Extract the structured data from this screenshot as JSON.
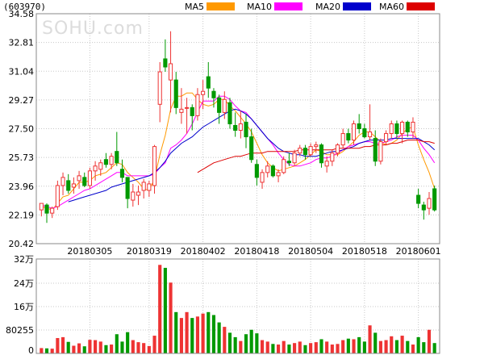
{
  "header": {
    "code": "(603970)"
  },
  "watermark": "SOHU.com",
  "legend": [
    {
      "name": "MA5",
      "color": "#ff9900"
    },
    {
      "name": "MA10",
      "color": "#ff00ff"
    },
    {
      "name": "MA20",
      "color": "#0000cc"
    },
    {
      "name": "MA60",
      "color": "#dd0000"
    }
  ],
  "colors": {
    "up": "#ee3333",
    "down": "#009900",
    "grid": "#c8c8c8",
    "axis": "#888888"
  },
  "chart_data": {
    "type": "candlestick",
    "price_axis": {
      "ticks": [
        "34.58",
        "32.81",
        "31.04",
        "29.27",
        "27.50",
        "25.73",
        "23.96",
        "22.19",
        "20.42"
      ],
      "ylim": [
        20.42,
        34.58
      ]
    },
    "volume_axis": {
      "ticks": [
        "32万",
        "24万",
        "16万",
        "80255",
        "0"
      ],
      "ylim": [
        0,
        320000
      ]
    },
    "x_ticks": [
      {
        "index": 9,
        "label": "20180305"
      },
      {
        "index": 20,
        "label": "20180319"
      },
      {
        "index": 30,
        "label": "20180402"
      },
      {
        "index": 40,
        "label": "20180418"
      },
      {
        "index": 50,
        "label": "20180504"
      },
      {
        "index": 60,
        "label": "20180518"
      },
      {
        "index": 70,
        "label": "20180601"
      }
    ],
    "candles": [
      [
        22.5,
        22.9,
        22.1,
        22.9
      ],
      [
        22.8,
        22.9,
        21.7,
        22.3
      ],
      [
        22.3,
        22.7,
        22.0,
        22.6
      ],
      [
        22.7,
        24.3,
        22.5,
        24.0
      ],
      [
        24.0,
        24.8,
        23.4,
        24.5
      ],
      [
        24.3,
        24.7,
        23.5,
        23.7
      ],
      [
        23.9,
        24.5,
        23.5,
        24.1
      ],
      [
        24.3,
        24.9,
        23.8,
        24.6
      ],
      [
        24.5,
        24.8,
        23.9,
        24.0
      ],
      [
        24.0,
        25.1,
        23.8,
        24.9
      ],
      [
        24.9,
        25.5,
        24.3,
        25.2
      ],
      [
        25.0,
        25.6,
        24.6,
        25.4
      ],
      [
        25.6,
        26.0,
        25.1,
        25.3
      ],
      [
        25.3,
        26.0,
        25.0,
        25.8
      ],
      [
        26.1,
        27.3,
        25.2,
        25.4
      ],
      [
        25.0,
        25.6,
        24.2,
        24.5
      ],
      [
        24.5,
        24.5,
        22.6,
        23.2
      ],
      [
        23.1,
        24.1,
        22.7,
        23.6
      ],
      [
        23.4,
        24.0,
        22.8,
        23.6
      ],
      [
        23.7,
        24.4,
        23.2,
        24.2
      ],
      [
        23.7,
        24.3,
        23.3,
        24.1
      ],
      [
        24.0,
        26.5,
        23.5,
        26.4
      ],
      [
        29.0,
        31.6,
        27.9,
        31.0
      ],
      [
        31.8,
        33.0,
        31.0,
        31.3
      ],
      [
        30.5,
        33.5,
        28.5,
        31.5
      ],
      [
        30.5,
        31.0,
        28.4,
        28.8
      ],
      [
        28.5,
        30.0,
        27.8,
        28.7
      ],
      [
        28.8,
        29.4,
        27.2,
        28.8
      ],
      [
        28.8,
        29.0,
        27.4,
        28.3
      ],
      [
        28.3,
        30.0,
        28.0,
        29.6
      ],
      [
        29.6,
        30.5,
        28.7,
        29.8
      ],
      [
        30.7,
        31.6,
        29.4,
        30.0
      ],
      [
        29.8,
        30.0,
        28.8,
        29.4
      ],
      [
        29.4,
        29.6,
        27.8,
        28.5
      ],
      [
        28.5,
        29.8,
        28.1,
        29.3
      ],
      [
        29.1,
        29.4,
        27.5,
        27.8
      ],
      [
        27.7,
        28.5,
        27.0,
        27.4
      ],
      [
        27.4,
        28.6,
        26.9,
        27.8
      ],
      [
        27.9,
        28.4,
        26.3,
        27.0
      ],
      [
        27.0,
        27.5,
        25.4,
        25.6
      ],
      [
        25.3,
        25.6,
        24.0,
        24.5
      ],
      [
        24.2,
        25.0,
        23.8,
        24.8
      ],
      [
        24.8,
        25.5,
        24.5,
        25.2
      ],
      [
        25.2,
        25.3,
        24.5,
        24.6
      ],
      [
        24.6,
        25.0,
        24.2,
        24.8
      ],
      [
        24.8,
        25.8,
        24.7,
        25.6
      ],
      [
        25.5,
        26.0,
        25.2,
        25.4
      ],
      [
        25.4,
        26.2,
        25.2,
        26.0
      ],
      [
        26.0,
        26.5,
        25.8,
        26.3
      ],
      [
        26.3,
        26.5,
        25.6,
        25.9
      ],
      [
        25.9,
        26.6,
        25.8,
        26.4
      ],
      [
        26.4,
        26.7,
        26.0,
        26.5
      ],
      [
        26.5,
        26.6,
        25.1,
        25.4
      ],
      [
        25.2,
        25.8,
        24.8,
        25.5
      ],
      [
        25.5,
        26.2,
        25.2,
        26.0
      ],
      [
        26.0,
        26.6,
        25.8,
        26.5
      ],
      [
        26.5,
        27.5,
        26.3,
        27.2
      ],
      [
        27.2,
        27.5,
        26.6,
        26.8
      ],
      [
        26.8,
        28.0,
        26.5,
        27.8
      ],
      [
        27.8,
        28.4,
        27.2,
        27.5
      ],
      [
        27.5,
        27.8,
        26.9,
        27.0
      ],
      [
        27.0,
        29.0,
        26.8,
        27.3
      ],
      [
        26.9,
        27.4,
        25.2,
        25.5
      ],
      [
        25.5,
        26.9,
        25.3,
        26.7
      ],
      [
        26.7,
        27.4,
        26.5,
        27.2
      ],
      [
        27.2,
        28.0,
        26.9,
        27.8
      ],
      [
        27.8,
        28.0,
        26.9,
        27.2
      ],
      [
        27.2,
        28.0,
        26.6,
        27.9
      ],
      [
        27.9,
        28.0,
        27.0,
        27.3
      ],
      [
        27.3,
        28.2,
        26.9,
        27.9
      ],
      [
        23.4,
        23.8,
        22.6,
        22.9
      ],
      [
        22.8,
        23.0,
        21.9,
        22.5
      ],
      [
        22.6,
        23.6,
        22.2,
        23.2
      ],
      [
        23.8,
        24.0,
        22.4,
        22.5
      ]
    ],
    "volume": [
      18000,
      17000,
      16000,
      52000,
      55000,
      39000,
      26000,
      34000,
      24000,
      46000,
      45000,
      40000,
      28000,
      30000,
      65000,
      40000,
      72000,
      45000,
      38000,
      35000,
      25000,
      60000,
      300000,
      290000,
      240000,
      140000,
      120000,
      140000,
      120000,
      125000,
      135000,
      140000,
      130000,
      105000,
      90000,
      70000,
      55000,
      42000,
      65000,
      80000,
      68000,
      45000,
      40000,
      32000,
      30000,
      42000,
      30000,
      35000,
      40000,
      28000,
      35000,
      38000,
      48000,
      40000,
      30000,
      32000,
      45000,
      50000,
      48000,
      55000,
      40000,
      95000,
      70000,
      42000,
      45000,
      58000,
      45000,
      60000,
      42000,
      30000,
      55000,
      38000,
      80000,
      35000
    ],
    "ma5": [
      22.7,
      22.6,
      22.5,
      22.9,
      23.3,
      23.4,
      23.8,
      24.2,
      24.2,
      24.3,
      24.6,
      24.7,
      24.8,
      25.1,
      25.4,
      25.3,
      24.8,
      24.5,
      24.2,
      23.8,
      23.7,
      24.4,
      25.9,
      27.1,
      28.7,
      29.5,
      29.5,
      29.7,
      29.7,
      29.3,
      29.0,
      28.9,
      29.0,
      29.3,
      29.3,
      28.9,
      28.6,
      28.2,
      27.8,
      27.3,
      26.6,
      25.9,
      25.4,
      25.1,
      24.9,
      25.0,
      25.1,
      25.2,
      25.4,
      25.6,
      25.9,
      26.2,
      26.1,
      25.9,
      25.9,
      25.9,
      26.1,
      26.4,
      26.7,
      27.1,
      27.3,
      27.3,
      27.0,
      26.7,
      26.5,
      26.6,
      26.8,
      27.2,
      27.5,
      27.6,
      26.5,
      25.6,
      24.8,
      23.8
    ],
    "ma10": [
      22.8,
      22.7,
      22.6,
      22.7,
      22.9,
      23.1,
      23.3,
      23.5,
      23.7,
      23.8,
      24.0,
      24.2,
      24.4,
      24.6,
      24.8,
      24.8,
      24.6,
      24.6,
      24.6,
      24.6,
      24.6,
      24.7,
      25.1,
      25.4,
      26.3,
      26.5,
      26.8,
      27.2,
      27.8,
      28.5,
      29.2,
      29.2,
      29.2,
      29.5,
      29.5,
      29.3,
      28.9,
      28.6,
      28.5,
      28.1,
      27.7,
      27.3,
      26.9,
      26.5,
      26.0,
      25.6,
      25.3,
      25.2,
      25.2,
      25.3,
      25.4,
      25.6,
      25.7,
      25.7,
      25.8,
      26.0,
      26.2,
      26.4,
      26.5,
      26.6,
      26.7,
      26.7,
      26.6,
      26.6,
      26.7,
      26.8,
      27.0,
      27.1,
      27.1,
      27.1,
      26.8,
      26.3,
      25.9,
      25.4
    ],
    "ma20": [
      null,
      null,
      null,
      null,
      null,
      23.0,
      23.1,
      23.2,
      23.3,
      23.4,
      23.5,
      23.6,
      23.7,
      23.9,
      24.0,
      24.1,
      24.2,
      24.3,
      24.4,
      24.5,
      24.6,
      24.8,
      25.1,
      25.5,
      26.0,
      26.3,
      26.6,
      26.8,
      27.0,
      27.3,
      27.6,
      27.8,
      28.0,
      28.2,
      28.4,
      28.6,
      28.7,
      28.6,
      28.4,
      28.1,
      27.7,
      27.3,
      26.9,
      26.6,
      26.3,
      26.1,
      26.0,
      25.9,
      25.9,
      25.8,
      25.8,
      25.8,
      25.9,
      26.0,
      26.1,
      26.1,
      26.2,
      26.3,
      26.4,
      26.6,
      26.7,
      26.8,
      26.8,
      26.8,
      26.8,
      26.9,
      26.9,
      26.9,
      26.9,
      26.9,
      26.9,
      26.7,
      26.5,
      26.2
    ],
    "ma60": [
      null,
      null,
      null,
      null,
      null,
      null,
      null,
      null,
      null,
      null,
      null,
      null,
      null,
      null,
      null,
      null,
      null,
      null,
      null,
      null,
      null,
      null,
      null,
      null,
      null,
      null,
      null,
      null,
      null,
      24.8,
      25.0,
      25.2,
      25.4,
      25.5,
      25.6,
      25.7,
      25.8,
      25.8,
      25.9,
      26.0,
      26.0,
      26.0,
      26.1,
      26.1,
      26.1,
      26.1,
      26.1,
      26.1,
      26.2,
      26.2,
      26.2,
      26.2,
      26.2,
      26.2,
      26.2,
      26.3,
      26.3,
      26.3,
      26.3,
      26.3,
      26.4,
      26.4,
      26.5,
      26.5,
      26.5,
      26.6,
      26.6,
      26.7,
      26.8,
      26.8,
      26.8,
      26.7,
      26.7,
      26.6
    ]
  }
}
